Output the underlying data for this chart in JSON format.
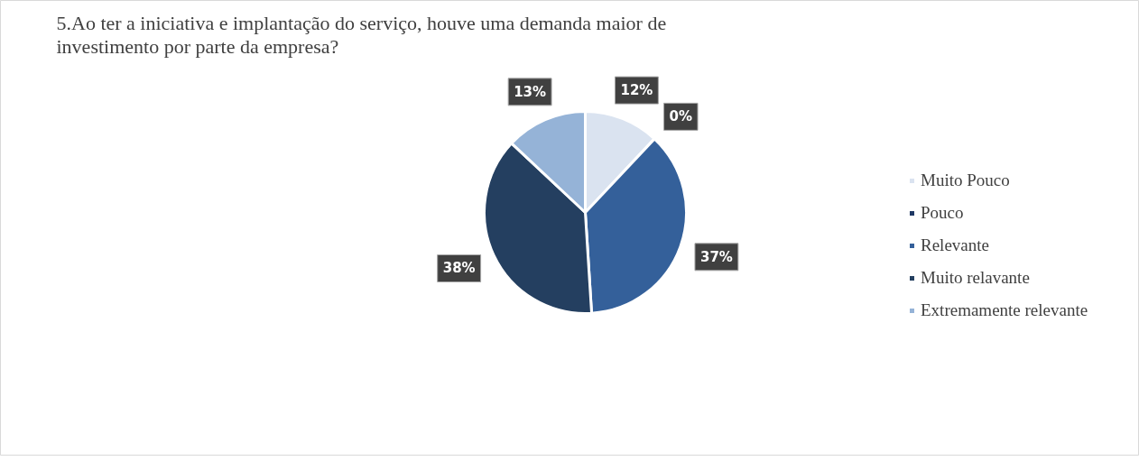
{
  "chart_data": {
    "type": "pie",
    "title": "5.Ao ter a iniciativa e implantação do serviço, houve uma demanda maior de investimento por parte da empresa?",
    "categories": [
      "Muito Pouco",
      "Pouco",
      "Relevante",
      "Muito relavante",
      "Extremamente relevante"
    ],
    "values": [
      12,
      0,
      37,
      38,
      13
    ],
    "colors": [
      "#dae3f0",
      "#1f3864",
      "#34609a",
      "#243f60",
      "#95b3d7"
    ],
    "value_labels": [
      "12%",
      "0%",
      "37%",
      "38%",
      "13%"
    ],
    "legend": "right"
  }
}
